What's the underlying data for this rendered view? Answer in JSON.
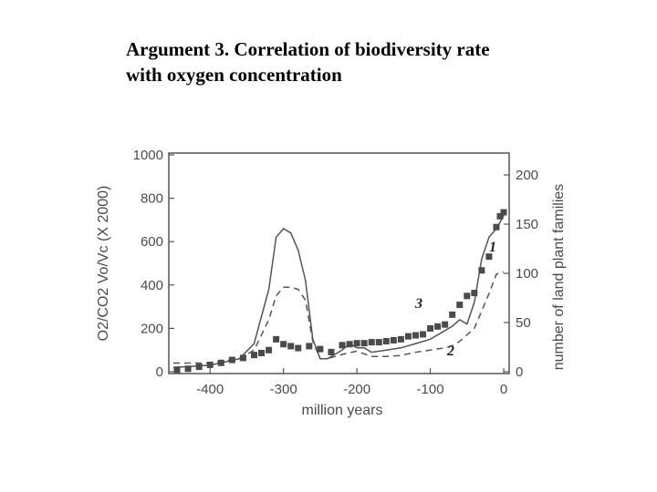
{
  "slide": {
    "title_line1": "Argument 3. Correlation of biodiversity rate",
    "title_line2": "with oxygen concentration"
  },
  "chart_data": {
    "type": "line",
    "xlabel": "million years",
    "ylabel_left": "O2/CO2 Vo/Vc (X 2000)",
    "ylabel_right": "number of land plant families",
    "xlim": [
      -450,
      0
    ],
    "ylim_left": [
      0,
      1000
    ],
    "ylim_right": [
      0,
      200
    ],
    "x_ticks": [
      -400,
      -300,
      -200,
      -100,
      0
    ],
    "y_ticks_left": [
      0,
      200,
      400,
      600,
      800,
      1000
    ],
    "y_ticks_right": [
      0,
      50,
      100,
      150,
      200
    ],
    "colors": {
      "line": "#555555",
      "marker": "#4a4a4a",
      "axis": "#555555"
    },
    "series": [
      {
        "label": "1",
        "axis": "left",
        "style": "solid",
        "x": [
          -450,
          -400,
          -360,
          -340,
          -320,
          -310,
          -300,
          -290,
          -280,
          -270,
          -260,
          -250,
          -240,
          -220,
          -210,
          -200,
          -190,
          -180,
          -160,
          -140,
          -120,
          -100,
          -80,
          -70,
          -60,
          -50,
          -40,
          -30,
          -20,
          -10,
          0
        ],
        "y": [
          20,
          30,
          60,
          130,
          380,
          620,
          660,
          640,
          560,
          420,
          150,
          60,
          60,
          100,
          130,
          110,
          110,
          90,
          100,
          110,
          130,
          150,
          190,
          210,
          240,
          220,
          320,
          520,
          620,
          660,
          720
        ]
      },
      {
        "label": "2",
        "axis": "left",
        "style": "dashed",
        "x": [
          -450,
          -400,
          -360,
          -340,
          -320,
          -310,
          -300,
          -290,
          -280,
          -270,
          -260,
          -250,
          -240,
          -220,
          -200,
          -180,
          -160,
          -140,
          -120,
          -100,
          -80,
          -70,
          -60,
          -50,
          -40,
          -30,
          -20,
          -10,
          0
        ],
        "y": [
          40,
          40,
          60,
          100,
          240,
          350,
          390,
          390,
          380,
          330,
          140,
          60,
          60,
          80,
          95,
          70,
          70,
          75,
          90,
          100,
          110,
          120,
          140,
          170,
          200,
          280,
          360,
          450,
          460
        ]
      },
      {
        "label": "3",
        "axis": "right",
        "style": "markers",
        "x": [
          -445,
          -430,
          -415,
          -400,
          -385,
          -370,
          -355,
          -340,
          -330,
          -320,
          -310,
          -300,
          -290,
          -280,
          -265,
          -250,
          -235,
          -220,
          -210,
          -200,
          -190,
          -180,
          -170,
          -160,
          -150,
          -140,
          -130,
          -120,
          -110,
          -100,
          -90,
          -80,
          -70,
          -60,
          -50,
          -40,
          -30,
          -20,
          -10,
          -5,
          0
        ],
        "y": [
          2,
          3,
          5,
          7,
          9,
          12,
          14,
          17,
          19,
          22,
          33,
          28,
          26,
          24,
          26,
          23,
          20,
          27,
          28,
          29,
          29,
          30,
          30,
          31,
          32,
          33,
          36,
          37,
          38,
          44,
          46,
          48,
          58,
          68,
          77,
          80,
          103,
          117,
          147,
          158,
          162
        ]
      }
    ],
    "annotations": [
      "1",
      "2",
      "3"
    ]
  }
}
